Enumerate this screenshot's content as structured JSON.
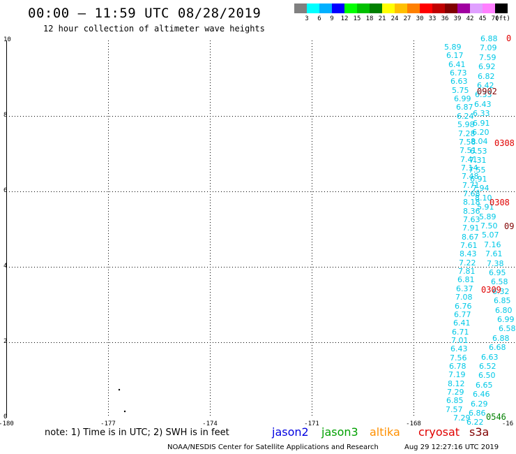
{
  "header": {
    "title": "00:00 – 11:59 UTC 08/28/2019",
    "subtitle": "12 hour collection of altimeter wave heights"
  },
  "colorbar": {
    "colors": [
      "#808080",
      "#00ffff",
      "#00b0ff",
      "#0000ff",
      "#00ff00",
      "#00c000",
      "#008000",
      "#ffff00",
      "#ffc000",
      "#ff8000",
      "#ff0000",
      "#c00000",
      "#800000",
      "#a000a0",
      "#e0a0ff",
      "#ff80ff",
      "#000000"
    ],
    "labels": [
      "3",
      "6",
      "9",
      "12",
      "15",
      "18",
      "21",
      "24",
      "27",
      "30",
      "33",
      "36",
      "39",
      "42",
      "45",
      "70",
      "(ft)"
    ]
  },
  "axes": {
    "y_ticks": [
      "10",
      "8",
      "6",
      "4",
      "2",
      "0"
    ],
    "x_ticks": [
      "-180",
      "-177",
      "-174",
      "-171",
      "-168",
      "-16"
    ]
  },
  "wave_heights": {
    "col_a": [
      "5.89",
      "6.17",
      "6.41",
      "6.73",
      "6.63",
      "5.75",
      "6.99",
      "6.87",
      "6.24",
      "5.98",
      "7.28",
      "7.58",
      "7.51",
      "7.41",
      "7.14",
      "7.48",
      "7.71",
      "7.68",
      "8.18",
      "8.36",
      "7.63",
      "7.91",
      "8.67",
      "7.61",
      "8.43",
      "7.22",
      "7.81",
      "6.81",
      "6.37",
      "7.08",
      "6.76",
      "6.77",
      "6.41",
      "6.71",
      "7.01",
      "6.43",
      "7.56",
      "6.78",
      "7.19",
      "8.12",
      "7.29",
      "6.85",
      "7.57",
      "7.29"
    ],
    "col_b": [
      "6.88",
      "7.09",
      "7.59",
      "6.92",
      "6.82",
      "6.42",
      "6.33",
      "6.43",
      "6.33",
      "6.91",
      "6.20",
      "8.04",
      "6.53",
      "7.31",
      "7.55",
      "6.91",
      "7.94",
      "8.10",
      "5.91",
      "5.89",
      "7.50",
      "5.07",
      "7.16",
      "7.61",
      "7.38",
      "6.95",
      "6.58",
      "6.32",
      "6.85",
      "6.80",
      "6.99",
      "6.58",
      "6.88",
      "6.68",
      "6.63",
      "6.52",
      "6.50",
      "6.65",
      "6.46",
      "6.29",
      "6.86",
      "6.22"
    ],
    "time_labels": [
      "0902",
      "0308",
      "0308",
      "0309",
      "0546"
    ],
    "edge_labels": [
      "0",
      "09"
    ]
  },
  "legend": {
    "note": "note: 1) Time is in UTC; 2) SWH is in feet",
    "items": [
      {
        "label": "jason2",
        "color": "#0000e0"
      },
      {
        "label": "jason3",
        "color": "#00a000"
      },
      {
        "label": "altika",
        "color": "#ff9000"
      },
      {
        "label": "cryosat",
        "color": "#e00000"
      },
      {
        "label": "s3a",
        "color": "#800000"
      }
    ]
  },
  "footer": {
    "credit": "NOAA/NESDIS Center for Satellite Applications and Research",
    "timestamp": "Aug 29 12:27:16 UTC 2019"
  },
  "styles": {
    "wave_color": "#00c8e6",
    "grid_color": "#000000"
  }
}
